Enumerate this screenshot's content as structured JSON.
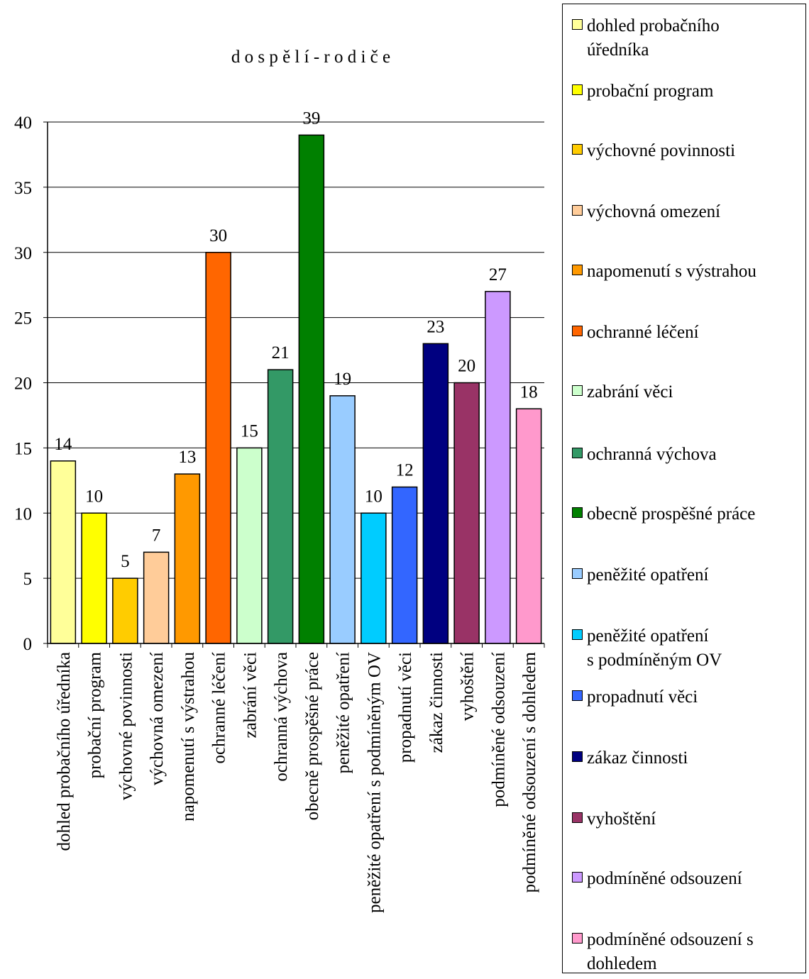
{
  "chart_data": {
    "type": "bar",
    "title": "d o s p ě l í - r o d i č e",
    "ylim": [
      0,
      40
    ],
    "y_ticks": [
      0,
      5,
      10,
      15,
      20,
      25,
      30,
      35,
      40
    ],
    "grid": true,
    "legend_position": "right",
    "categories": [
      "dohled probačního úředníka",
      "probační program",
      "výchovné povinnosti",
      "výchovná omezení",
      "napomenutí s výstrahou",
      "ochranné léčení",
      "zabrání věci",
      "ochranná výchova",
      "obecně prospěšné práce",
      "peněžité opatření",
      "peněžité opatření s podmíněným OV",
      "propadnutí věci",
      "zákaz činnosti",
      "vyhoštění",
      "podmíněné odsouzení",
      "podmíněné odsouzení s dohledem"
    ],
    "values": [
      14,
      10,
      5,
      7,
      13,
      30,
      15,
      21,
      39,
      19,
      10,
      12,
      23,
      20,
      27,
      18
    ],
    "colors": [
      "#ffff99",
      "#ffff00",
      "#ffcc00",
      "#ffcc99",
      "#ff9900",
      "#ff6600",
      "#ccffcc",
      "#339966",
      "#008000",
      "#99ccff",
      "#00ccff",
      "#3366ff",
      "#000080",
      "#993366",
      "#cc99ff",
      "#ff99cc"
    ],
    "legend": [
      "dohled probačního\núředníka",
      "probační program",
      "výchovné povinnosti",
      "výchovná omezení",
      "napomenutí s výstrahou",
      "ochranné léčení",
      "zabrání věci",
      "ochranná výchova",
      "obecně prospěšné práce",
      "peněžité opatření",
      "peněžité opatření\ns podmíněným OV",
      "propadnutí věci",
      "zákaz činnosti",
      "vyhoštění",
      "podmíněné odsouzení",
      "podmíněné odsouzení s\ndohledem"
    ]
  }
}
